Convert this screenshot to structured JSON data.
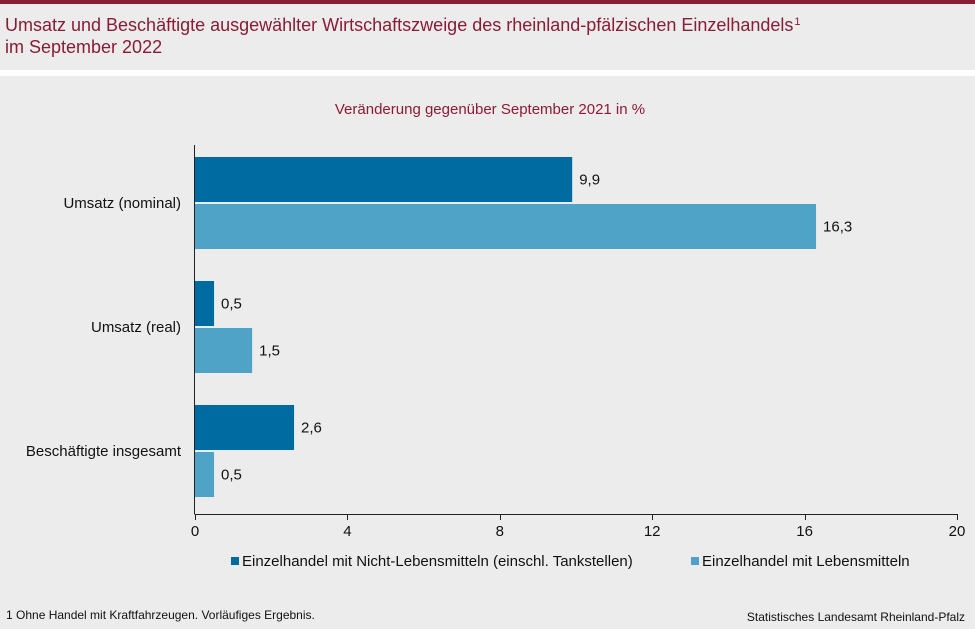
{
  "header": {
    "title_line1": "Umsatz und Beschäftigte ausgewählter Wirtschaftszweige des rheinland-pfälzischen Einzelhandels",
    "title_sup": "1",
    "title_line2": "im September 2022"
  },
  "footer": {
    "footnote": "1 Ohne Handel mit Kraftfahrzeugen. Vorläufiges Ergebnis.",
    "source": "Statistisches Landesamt Rheinland-Pfalz"
  },
  "chart_data": {
    "type": "bar",
    "orientation": "horizontal",
    "subtitle": "Veränderung gegenüber September 2021 in %",
    "categories": [
      "Umsatz (nominal)",
      "Umsatz (real)",
      "Beschäftigte insgesamt"
    ],
    "series": [
      {
        "name": "Einzelhandel mit Nicht-Lebensmitteln (einschl. Tankstellen)",
        "values": [
          9.9,
          0.5,
          2.6
        ],
        "labels": [
          "9,9",
          "0,5",
          "2,6"
        ],
        "color": "#006ba0"
      },
      {
        "name": "Einzelhandel mit Lebensmitteln",
        "values": [
          16.3,
          1.5,
          0.5
        ],
        "labels": [
          "16,3",
          "1,5",
          "0,5"
        ],
        "color": "#4fa3c7"
      }
    ],
    "xlim": [
      0,
      20
    ],
    "xticks": [
      0,
      4,
      8,
      12,
      16,
      20
    ],
    "grid": false,
    "legend_position": "bottom"
  }
}
